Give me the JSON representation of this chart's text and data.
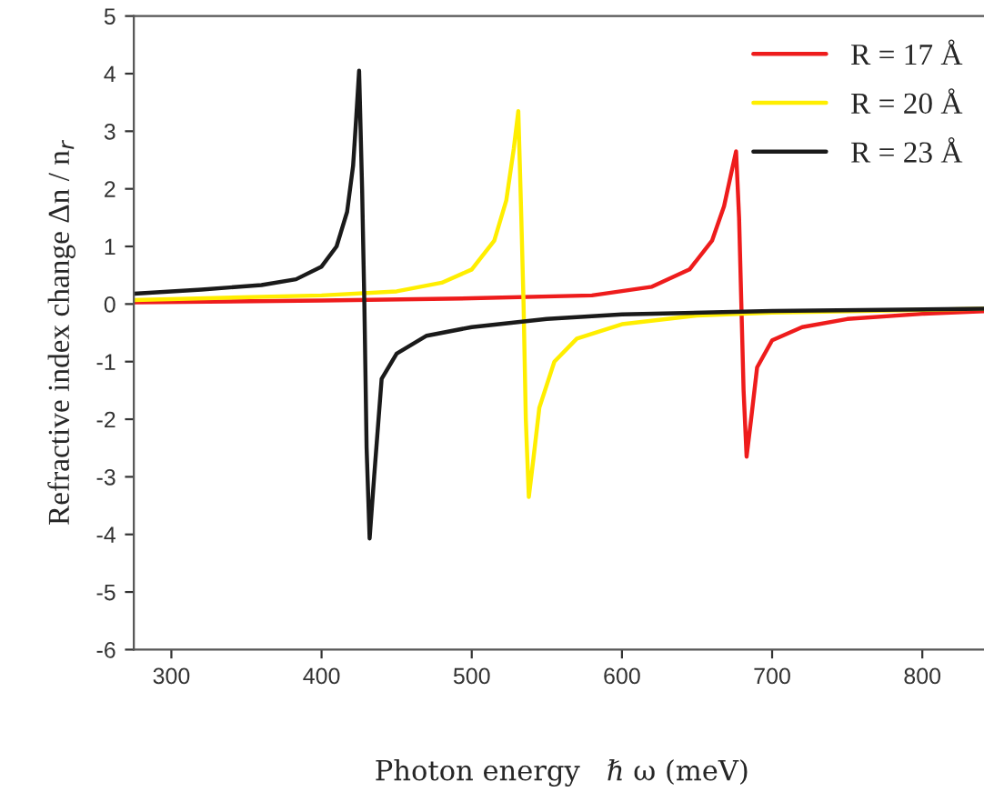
{
  "chart_data": {
    "type": "line",
    "xlabel": "Photon energy   ℏ ω (meV)",
    "ylabel": "Refractive index change Δn / n$_{r}$",
    "xlim": [
      275,
      845
    ],
    "xticks": [
      300,
      400,
      500,
      600,
      700,
      800
    ],
    "ylim": [
      -6,
      5
    ],
    "yticks": [
      -6,
      -5,
      -4,
      -3,
      -2,
      -1,
      0,
      1,
      2,
      3,
      4,
      5
    ],
    "grid": false,
    "legend": "top right",
    "marker": "none",
    "line_style": "solid",
    "series": [
      {
        "name": "R = 17 Å",
        "color": "#ee1c1c",
        "x": [
          275,
          400,
          500,
          580,
          620,
          645,
          660,
          668,
          673,
          676,
          678,
          679.5,
          681,
          683,
          686,
          690,
          700,
          720,
          750,
          800,
          845
        ],
        "values": [
          0.03,
          0.06,
          0.1,
          0.15,
          0.3,
          0.6,
          1.1,
          1.7,
          2.3,
          2.65,
          1.5,
          0,
          -1.5,
          -2.65,
          -2.0,
          -1.1,
          -0.63,
          -0.4,
          -0.26,
          -0.17,
          -0.12
        ]
      },
      {
        "name": "R = 20 Å",
        "color": "#ffee00",
        "x": [
          275,
          400,
          450,
          480,
          500,
          515,
          523,
          528,
          531,
          533,
          534.5,
          536,
          538,
          541,
          545,
          555,
          570,
          600,
          650,
          700,
          845
        ],
        "values": [
          0.07,
          0.15,
          0.22,
          0.37,
          0.6,
          1.1,
          1.8,
          2.7,
          3.35,
          1.5,
          0,
          -2.0,
          -3.35,
          -2.7,
          -1.8,
          -1.0,
          -0.6,
          -0.35,
          -0.2,
          -0.15,
          -0.08
        ]
      },
      {
        "name": "R = 23 Å",
        "color": "#1a1a1a",
        "x": [
          275,
          320,
          360,
          383,
          400,
          410,
          417,
          421,
          423,
          425,
          427,
          428.5,
          430,
          432,
          435,
          440,
          450,
          470,
          500,
          550,
          600,
          700,
          845
        ],
        "values": [
          0.18,
          0.25,
          0.33,
          0.43,
          0.65,
          1.0,
          1.6,
          2.4,
          3.2,
          4.05,
          2.0,
          0,
          -2.5,
          -4.07,
          -3.0,
          -1.3,
          -0.86,
          -0.55,
          -0.4,
          -0.26,
          -0.18,
          -0.12,
          -0.08
        ]
      }
    ]
  }
}
